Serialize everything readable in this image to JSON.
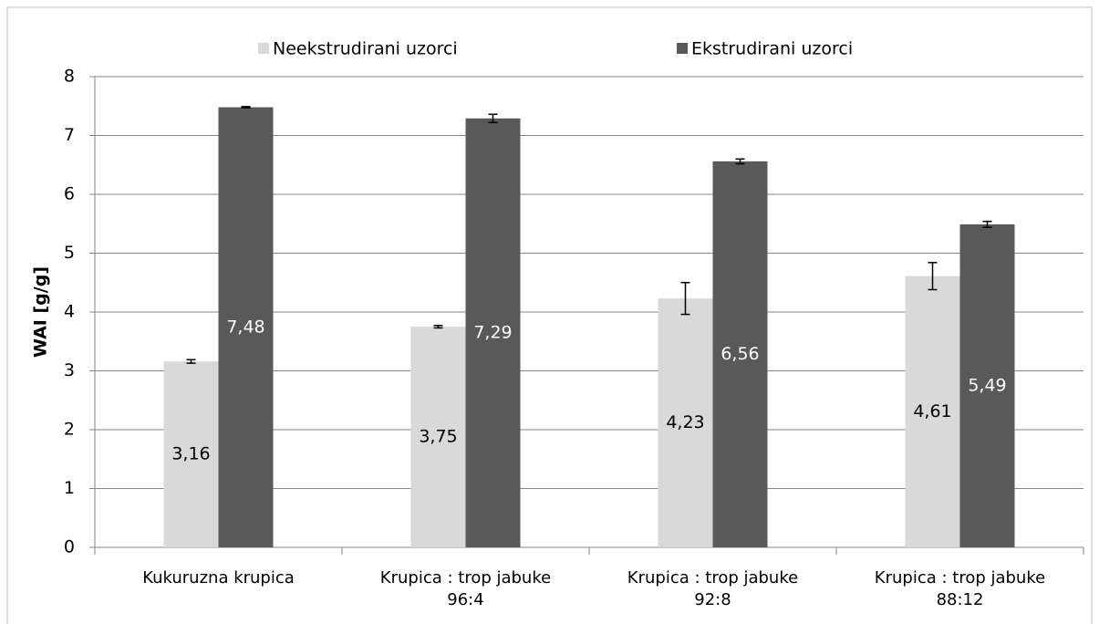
{
  "chart_data": {
    "type": "bar",
    "y_label": "WAI [g/g]",
    "categories": [
      "Kukuruzna krupica",
      "Krupica : trop jabuke 96:4",
      "Krupica : trop jabuke 92:8",
      "Krupica : trop jabuke 88:12"
    ],
    "series": [
      {
        "name": "Neekstrudirani uzorci",
        "color": "#d9d9d9",
        "label_color": "#000000",
        "values": [
          3.16,
          3.75,
          4.23,
          4.61
        ],
        "value_labels": [
          "3,16",
          "3,75",
          "4,23",
          "4,61"
        ],
        "errors": [
          0.03,
          0.02,
          0.27,
          0.23
        ]
      },
      {
        "name": "Ekstrudirani uzorci",
        "color": "#595959",
        "label_color": "#ffffff",
        "values": [
          7.48,
          7.29,
          6.56,
          5.49
        ],
        "value_labels": [
          "7,48",
          "7,29",
          "6,56",
          "5,49"
        ],
        "errors": [
          0.01,
          0.07,
          0.04,
          0.05
        ]
      }
    ],
    "ylim": [
      0,
      8
    ],
    "yticks": [
      0,
      1,
      2,
      3,
      4,
      5,
      6,
      7,
      8
    ],
    "grid": true,
    "legend": "top"
  }
}
